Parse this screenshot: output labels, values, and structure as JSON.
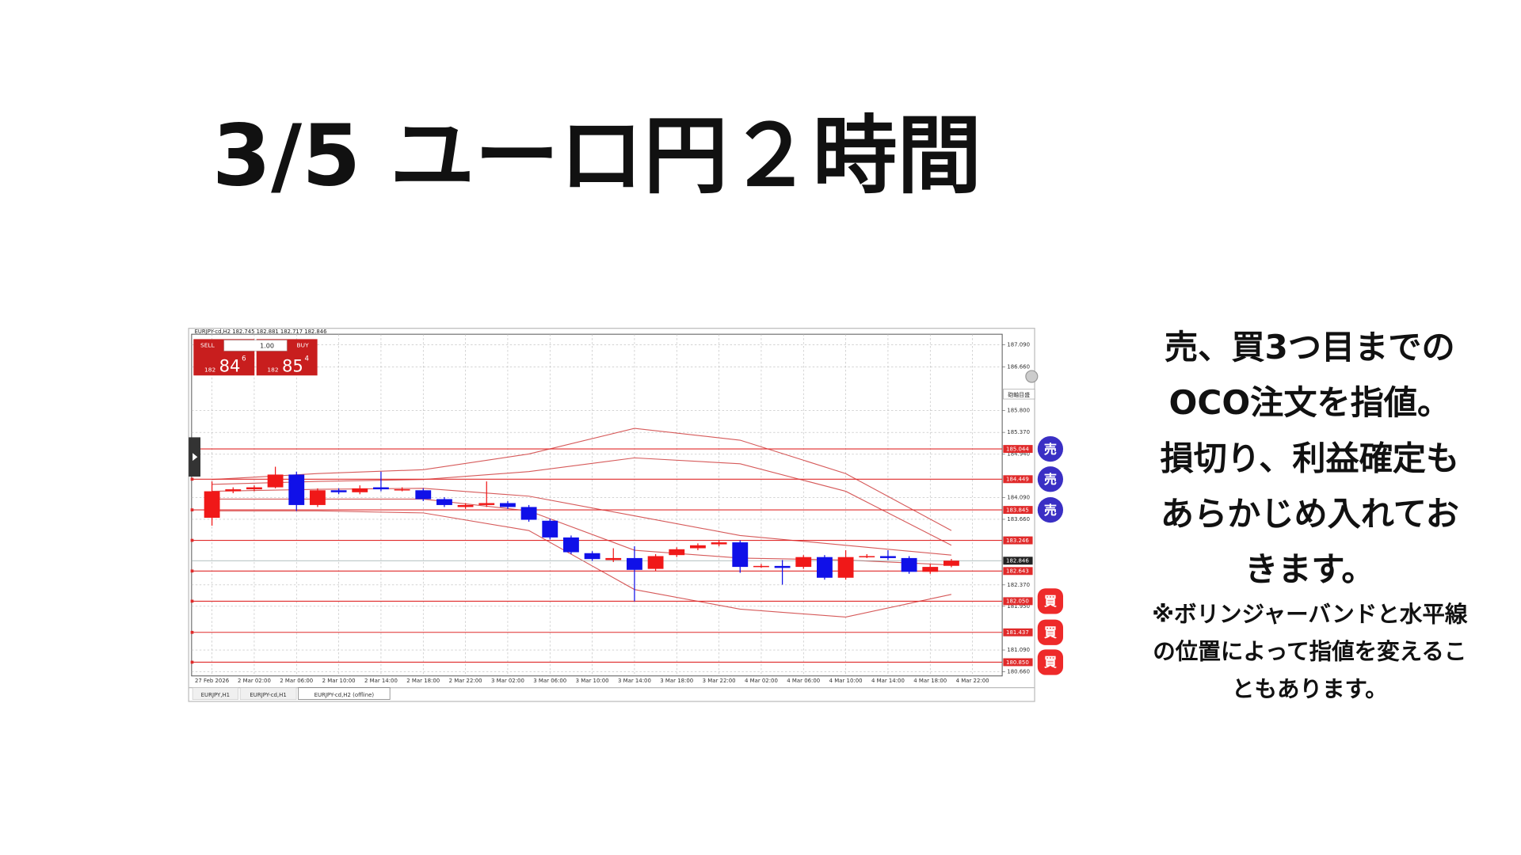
{
  "title": "3/5 ユーロ円２時間",
  "note": {
    "lines": [
      "売、買3つ目までの",
      "OCO注文を指値。",
      "損切り、利益確定も",
      "あらかじめ入れてお",
      "きます。"
    ],
    "sub_lines": [
      "※ボリンジャーバンドと水平線",
      "の位置によって指値を変えるこ",
      "ともあります。"
    ]
  },
  "panel": {
    "sell": "SELL",
    "buy": "BUY",
    "lots": "1.00",
    "bid": {
      "head": "182",
      "big": "84",
      "sup": "6"
    },
    "ask": {
      "head": "182",
      "big": "85",
      "sup": "4"
    },
    "scale_label": "砲軸目盛"
  },
  "tabs": [
    "EURJPY,H1",
    "EURJPY-cd,H1",
    "EURJPY-cd,H2 (offline)"
  ],
  "chart_data": {
    "type": "candlestick",
    "header": "EURJPY-cd,H2  182.745 182.881 182.717 182.846",
    "categories": [
      "27 Feb 2026",
      null,
      "2 Mar 02:00",
      null,
      "2 Mar 06:00",
      null,
      "2 Mar 10:00",
      null,
      "2 Mar 14:00",
      null,
      "2 Mar 18:00",
      null,
      "2 Mar 22:00",
      null,
      "3 Mar 02:00",
      null,
      "3 Mar 06:00",
      null,
      "3 Mar 10:00",
      null,
      "3 Mar 14:00",
      null,
      "3 Mar 18:00",
      null,
      "3 Mar 22:00",
      null,
      "4 Mar 02:00",
      null,
      "4 Mar 06:00",
      null,
      "4 Mar 10:00",
      null,
      "4 Mar 14:00",
      null,
      "4 Mar 18:00",
      null,
      "4 Mar 22:00"
    ],
    "open": [
      183.69,
      184.211,
      184.25,
      184.289,
      184.54,
      183.941,
      184.231,
      184.192,
      184.289,
      184.231,
      184.231,
      184.057,
      183.902,
      183.941,
      183.979,
      183.902,
      183.632,
      183.303,
      182.994,
      182.859,
      182.898,
      182.685,
      182.956,
      183.091,
      183.168,
      183.207,
      182.724,
      182.743,
      182.724,
      182.917,
      182.511,
      182.917,
      182.936,
      182.898,
      182.627,
      182.745,
      null
    ],
    "high": [
      184.405,
      184.289,
      184.327,
      184.694,
      184.598,
      184.269,
      184.269,
      184.327,
      184.598,
      184.289,
      184.269,
      184.095,
      183.979,
      184.405,
      184.018,
      183.941,
      183.67,
      183.342,
      183.033,
      183.091,
      183.129,
      182.975,
      183.11,
      183.187,
      183.245,
      183.245,
      182.782,
      182.859,
      182.956,
      182.956,
      183.052,
      182.975,
      183.052,
      182.936,
      182.782,
      182.881,
      null
    ],
    "low": [
      183.535,
      184.173,
      184.211,
      184.269,
      183.825,
      183.902,
      184.153,
      184.153,
      184.211,
      184.211,
      184.018,
      183.902,
      183.864,
      183.902,
      183.864,
      183.612,
      183.265,
      182.975,
      182.84,
      182.82,
      182.047,
      182.646,
      182.917,
      183.052,
      183.129,
      182.608,
      182.704,
      182.376,
      182.685,
      182.473,
      182.473,
      182.898,
      182.859,
      182.588,
      182.588,
      182.717,
      null
    ],
    "close": [
      184.211,
      184.25,
      184.289,
      184.54,
      183.941,
      184.231,
      184.192,
      184.269,
      184.25,
      184.25,
      184.057,
      183.941,
      183.941,
      183.979,
      183.902,
      183.651,
      183.303,
      183.013,
      182.878,
      182.898,
      182.666,
      182.936,
      183.071,
      183.149,
      183.207,
      182.724,
      182.743,
      182.704,
      182.917,
      182.511,
      182.917,
      182.936,
      182.898,
      182.627,
      182.724,
      182.846,
      null
    ],
    "up_color": "#f01818",
    "down_color": "#1010e8",
    "ylim": [
      180.58,
      187.3
    ],
    "yticks": [
      {
        "value": 187.09,
        "label": "187.090"
      },
      {
        "value": 186.66,
        "label": "186.660"
      },
      {
        "value": 185.8,
        "label": "185.800"
      },
      {
        "value": 185.37,
        "label": "185.370"
      },
      {
        "value": 184.94,
        "label": "184.940"
      },
      {
        "value": 184.09,
        "label": "184.090"
      },
      {
        "value": 183.66,
        "label": "183.660"
      },
      {
        "value": 182.37,
        "label": "182.370"
      },
      {
        "value": 181.95,
        "label": "181.950"
      },
      {
        "value": 181.09,
        "label": "181.090"
      },
      {
        "value": 180.66,
        "label": "180.660"
      }
    ],
    "grid": true,
    "bands": {
      "color": "#d65a5a",
      "x": [
        0,
        5,
        10,
        15,
        20,
        25,
        30,
        35
      ],
      "lines": [
        [
          184.443,
          184.559,
          184.636,
          184.945,
          185.448,
          185.216,
          184.559,
          183.439
        ],
        [
          184.347,
          184.405,
          184.443,
          184.598,
          184.868,
          184.752,
          184.211,
          183.149
        ],
        [
          184.211,
          184.25,
          184.269,
          184.115,
          183.728,
          183.342,
          183.149,
          182.956
        ],
        [
          184.057,
          184.057,
          184.057,
          183.825,
          183.052,
          182.898,
          182.859,
          182.762
        ],
        [
          183.825,
          183.825,
          183.786,
          183.439,
          182.279,
          181.893,
          181.738,
          182.183
        ]
      ]
    },
    "levels": {
      "color": "#e02a2a",
      "prices": [
        185.044,
        184.449,
        183.845,
        183.246,
        182.643,
        {
          "value": 182.05,
          "label": "182.050"
        },
        181.437,
        {
          "value": 180.85,
          "label": "180.850"
        }
      ],
      "orders": [
        "売",
        "売",
        "売",
        null,
        null,
        "買",
        "買",
        "買"
      ]
    },
    "sell_color": "#3a2fc4",
    "buy_color": "#ee2a2a",
    "price_line": 182.846
  }
}
